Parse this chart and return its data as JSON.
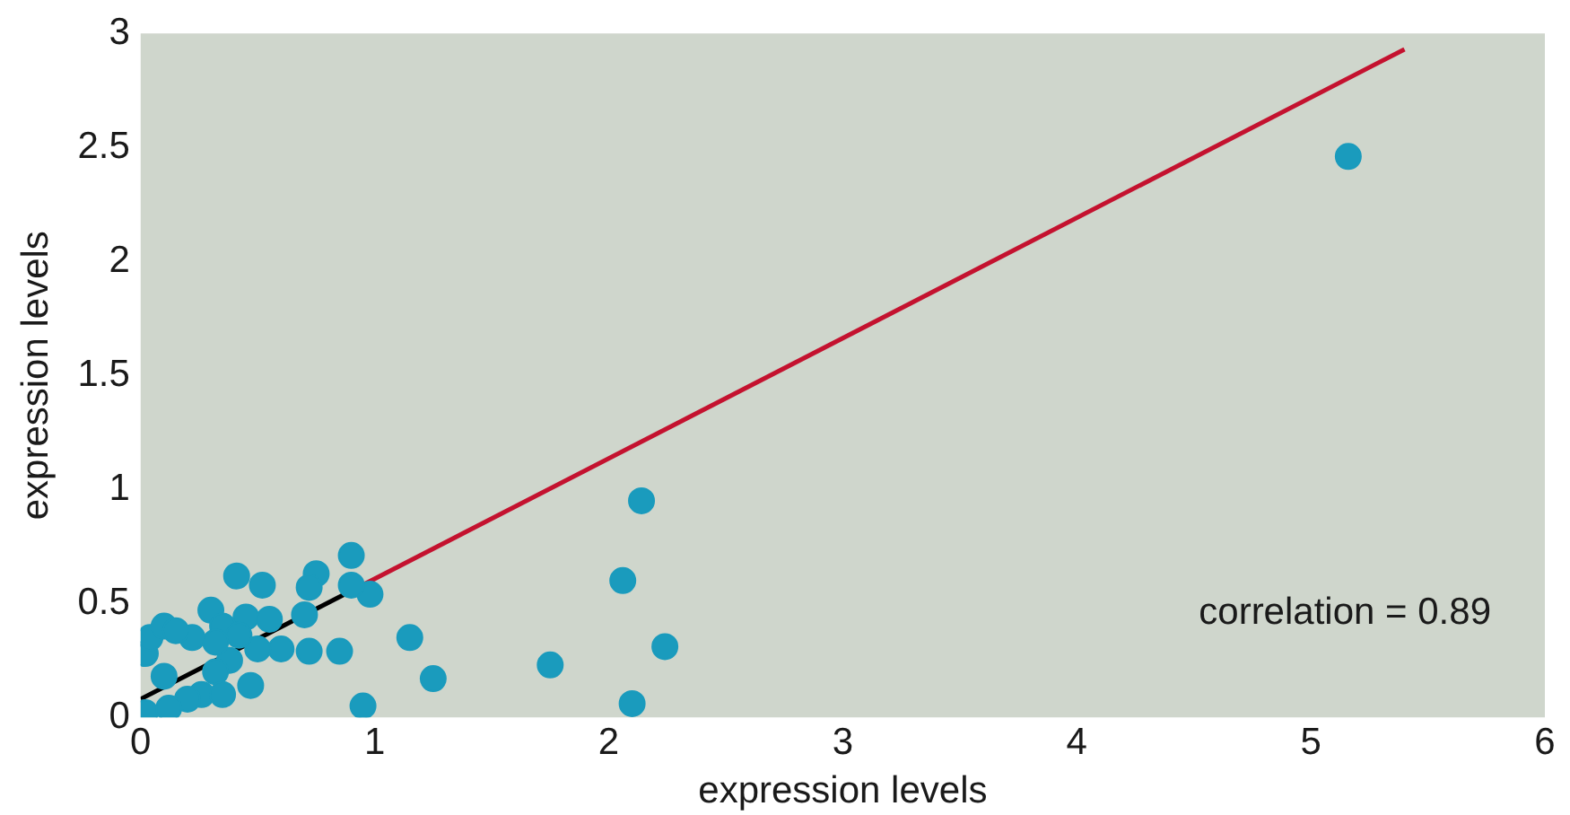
{
  "chart_data": {
    "type": "scatter",
    "xlabel": "expression levels",
    "ylabel": "expression levels",
    "xlim": [
      0,
      6
    ],
    "ylim": [
      0,
      3
    ],
    "xticks": [
      0,
      1,
      2,
      3,
      4,
      5,
      6
    ],
    "yticks": [
      0,
      0.5,
      1,
      1.5,
      2,
      2.5,
      3
    ],
    "grid": false,
    "legend": false,
    "annotations": [
      "correlation = 0.89"
    ],
    "series": [
      {
        "color": "#1a9bbd",
        "marker": "circle",
        "x": [
          5.16,
          2.14,
          2.06,
          2.24,
          2.1,
          1.75,
          1.25,
          1.15,
          0.95,
          0.98,
          0.9,
          0.9,
          0.75,
          0.72,
          0.7,
          0.72,
          0.85,
          0.6,
          0.41,
          0.52,
          0.3,
          0.45,
          0.55,
          0.35,
          0.5,
          0.47,
          0.38,
          0.42,
          0.32,
          0.22,
          0.02,
          0.1,
          0.26,
          0.02,
          0.04,
          0.1,
          0.15,
          0.2,
          0.32,
          0.35,
          0.12
        ],
        "values": [
          2.46,
          0.95,
          0.6,
          0.31,
          0.06,
          0.23,
          0.17,
          0.35,
          0.05,
          0.54,
          0.71,
          0.58,
          0.63,
          0.57,
          0.45,
          0.29,
          0.29,
          0.3,
          0.62,
          0.58,
          0.47,
          0.44,
          0.43,
          0.4,
          0.3,
          0.14,
          0.25,
          0.36,
          0.33,
          0.35,
          0.28,
          0.18,
          0.1,
          0.02,
          0.35,
          0.4,
          0.38,
          0.08,
          0.2,
          0.1,
          0.04
        ]
      },
      {
        "type": "line",
        "marker": "none",
        "color": "#000000",
        "x": [
          0,
          0.9
        ],
        "values": [
          0.08,
          0.555
        ]
      },
      {
        "type": "line",
        "marker": "none",
        "color": "#c4122f",
        "x": [
          0.9,
          5.4
        ],
        "values": [
          0.555,
          2.93
        ]
      }
    ]
  }
}
